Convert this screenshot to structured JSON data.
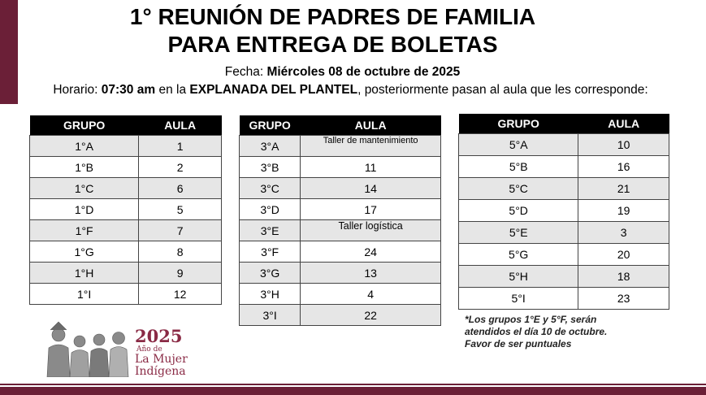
{
  "header": {
    "title_line1": "1° REUNIÓN DE PADRES DE FAMILIA",
    "title_line2": "PARA ENTREGA DE BOLETAS",
    "fecha_label": "Fecha:",
    "fecha_value": "Miércoles 08 de octubre de 2025",
    "horario_label": "Horario:",
    "horario_time": "07:30 am",
    "horario_mid": "en la",
    "horario_place": "EXPLANADA DEL PLANTEL",
    "horario_rest": ", posteriormente pasan al aula que les corresponde:"
  },
  "tables": [
    {
      "headers": [
        "GRUPO",
        "AULA"
      ],
      "rows": [
        [
          "1°A",
          "1"
        ],
        [
          "1°B",
          "2"
        ],
        [
          "1°C",
          "6"
        ],
        [
          "1°D",
          "5"
        ],
        [
          "1°F",
          "7"
        ],
        [
          "1°G",
          "8"
        ],
        [
          "1°H",
          "9"
        ],
        [
          "1°I",
          "12"
        ]
      ]
    },
    {
      "headers": [
        "GRUPO",
        "AULA"
      ],
      "rows": [
        [
          "3°A",
          "Taller de mantenimiento"
        ],
        [
          "3°B",
          "11"
        ],
        [
          "3°C",
          "14"
        ],
        [
          "3°D",
          "17"
        ],
        [
          "3°E",
          "Taller logística"
        ],
        [
          "3°F",
          "24"
        ],
        [
          "3°G",
          "13"
        ],
        [
          "3°H",
          "4"
        ],
        [
          "3°I",
          "22"
        ]
      ]
    },
    {
      "headers": [
        "GRUPO",
        "AULA"
      ],
      "rows": [
        [
          "5°A",
          "10"
        ],
        [
          "5°B",
          "16"
        ],
        [
          "5°C",
          "21"
        ],
        [
          "5°D",
          "19"
        ],
        [
          "5°E",
          "3"
        ],
        [
          "5°G",
          "20"
        ],
        [
          "5°H",
          "18"
        ],
        [
          "5°I",
          "23"
        ]
      ]
    }
  ],
  "note": {
    "line1": "*Los grupos 1°E y 5°F, serán",
    "line2": "atendidos el día 10 de octubre.",
    "line3": "Favor de ser puntuales"
  },
  "logo": {
    "year": "2025",
    "small": "Año de",
    "name1": "La Mujer",
    "name2": "Indígena"
  },
  "colors": {
    "brand": "#6b1f37",
    "header_bg": "#000000",
    "row_alt": "#e6e6e6"
  }
}
